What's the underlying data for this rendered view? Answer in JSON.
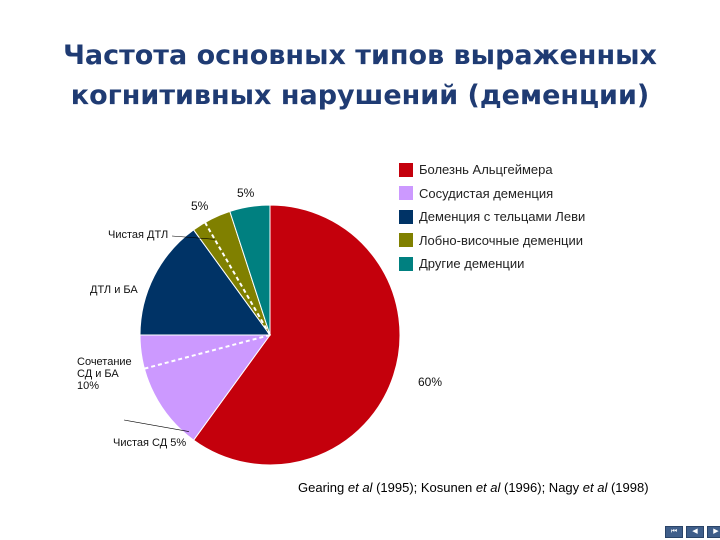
{
  "title": {
    "line1": "Частота основных типов выраженных",
    "line2": "когнитивных нарушений (деменции)"
  },
  "chart_data": {
    "type": "pie",
    "start_angle_deg": 0,
    "direction": "clockwise",
    "slices": [
      {
        "label": "Болезнь Альцгеймера",
        "value": 60,
        "color": "#c4000c",
        "shown_label": "60%"
      },
      {
        "label": "Сосудистая деменция",
        "value": 15,
        "color": "#cc99ff"
      },
      {
        "label": "Деменция с тельцами Леви",
        "value": 15,
        "color": "#003366"
      },
      {
        "label": "Лобно-височные деменции",
        "value": 5,
        "color": "#808000",
        "shown_label": "5%"
      },
      {
        "label": "Другие деменции",
        "value": 5,
        "color": "#008080",
        "shown_label": "5%"
      }
    ],
    "legend": {
      "position": "top-right",
      "entries": [
        "Болезнь Альцгеймера",
        "Сосудистая деменция",
        "Деменция с тельцами Леви",
        "Лобно-височные деменции",
        "Другие деменции"
      ]
    },
    "sub_annotations": {
      "pure_dlb": "Чистая ДТЛ",
      "dlb_and_ad": "ДТЛ и БА",
      "vd_and_ad": [
        "Сочетание",
        "СД и БА",
        "10%"
      ],
      "pure_vd": "Чистая СД 5%"
    }
  },
  "source": {
    "ref1": "Gearing ",
    "et1": "et al",
    "year1": " (1995); Kosunen ",
    "et2": "et al",
    "year2": " (1996); Nagy ",
    "et3": "et al",
    "year3": " (1998)"
  },
  "nav": [
    "⏮",
    "◀",
    "▶"
  ]
}
